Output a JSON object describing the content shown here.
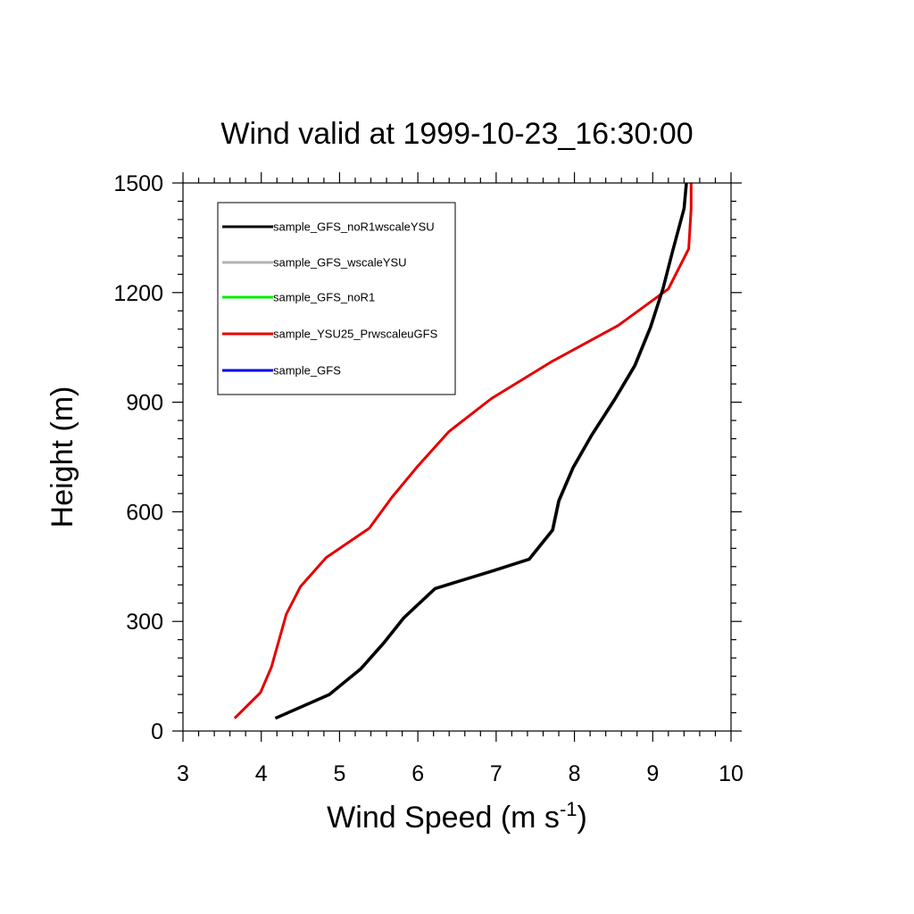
{
  "chart_data": {
    "type": "line",
    "title": "Wind valid at 1999-10-23_16:30:00",
    "xlabel": "Wind Speed (m s",
    "xlabel_sup": "-1",
    "xlabel_end": ")",
    "ylabel": "Height (m)",
    "xlim": [
      3,
      10
    ],
    "ylim": [
      0,
      1500
    ],
    "x_ticks": [
      "3",
      "4",
      "5",
      "6",
      "7",
      "8",
      "9",
      "10"
    ],
    "y_ticks": [
      "0",
      "300",
      "600",
      "900",
      "1200",
      "1500"
    ],
    "legend_position": "top-left",
    "series": [
      {
        "name": "sample_GFS_noR1wscaleYSU",
        "color": "#000000",
        "x": [
          4.18,
          4.87,
          5.27,
          5.56,
          5.82,
          6.22,
          6.98,
          7.42,
          7.72,
          7.8,
          7.98,
          8.22,
          8.52,
          8.77,
          8.97,
          9.13,
          9.25,
          9.35,
          9.4,
          9.43
        ],
        "y": [
          35,
          100,
          170,
          240,
          310,
          390,
          440,
          470,
          550,
          630,
          720,
          810,
          910,
          1000,
          1105,
          1210,
          1310,
          1390,
          1430,
          1500
        ]
      },
      {
        "name": "sample_GFS_wscaleYSU",
        "color": "#b3b3b3",
        "x": [
          4.18,
          4.87,
          5.28,
          5.57,
          5.83,
          6.23,
          6.99,
          7.43,
          7.73,
          7.81,
          7.99,
          8.23,
          8.53,
          8.78,
          8.98,
          9.13,
          9.25,
          9.35,
          9.4,
          9.43
        ],
        "y": [
          35,
          100,
          170,
          240,
          310,
          390,
          440,
          470,
          550,
          630,
          720,
          810,
          910,
          1000,
          1105,
          1210,
          1310,
          1390,
          1430,
          1500
        ]
      },
      {
        "name": "sample_GFS_noR1",
        "color": "#00ee00",
        "x": [
          4.18,
          4.87,
          5.27,
          5.56,
          5.82,
          6.22,
          6.98,
          7.42,
          7.72,
          7.8,
          7.98,
          8.22,
          8.52,
          8.77,
          8.97,
          9.13,
          9.25,
          9.35,
          9.4,
          9.43
        ],
        "y": [
          35,
          100,
          170,
          240,
          310,
          390,
          440,
          470,
          550,
          630,
          720,
          810,
          910,
          1000,
          1105,
          1210,
          1310,
          1390,
          1430,
          1500
        ]
      },
      {
        "name": "sample_YSU25_PrwscaleuGFS",
        "color": "#e60000",
        "x": [
          3.66,
          3.99,
          4.13,
          4.32,
          4.5,
          4.83,
          5.38,
          5.67,
          6.0,
          6.4,
          6.94,
          7.7,
          8.56,
          9.2,
          9.46,
          9.49,
          9.49
        ],
        "y": [
          35,
          105,
          175,
          320,
          395,
          475,
          555,
          640,
          725,
          820,
          910,
          1010,
          1110,
          1210,
          1320,
          1430,
          1500
        ]
      },
      {
        "name": "sample_GFS",
        "color": "#0000e6",
        "x": [
          4.18,
          4.87,
          5.27,
          5.56,
          5.82,
          6.22,
          6.98,
          7.42,
          7.72,
          7.8,
          7.98,
          8.22,
          8.52,
          8.77,
          8.97,
          9.13,
          9.25,
          9.35,
          9.4,
          9.43
        ],
        "y": [
          35,
          100,
          170,
          240,
          310,
          390,
          440,
          470,
          550,
          630,
          720,
          810,
          910,
          1000,
          1105,
          1210,
          1310,
          1390,
          1430,
          1500
        ]
      }
    ]
  }
}
